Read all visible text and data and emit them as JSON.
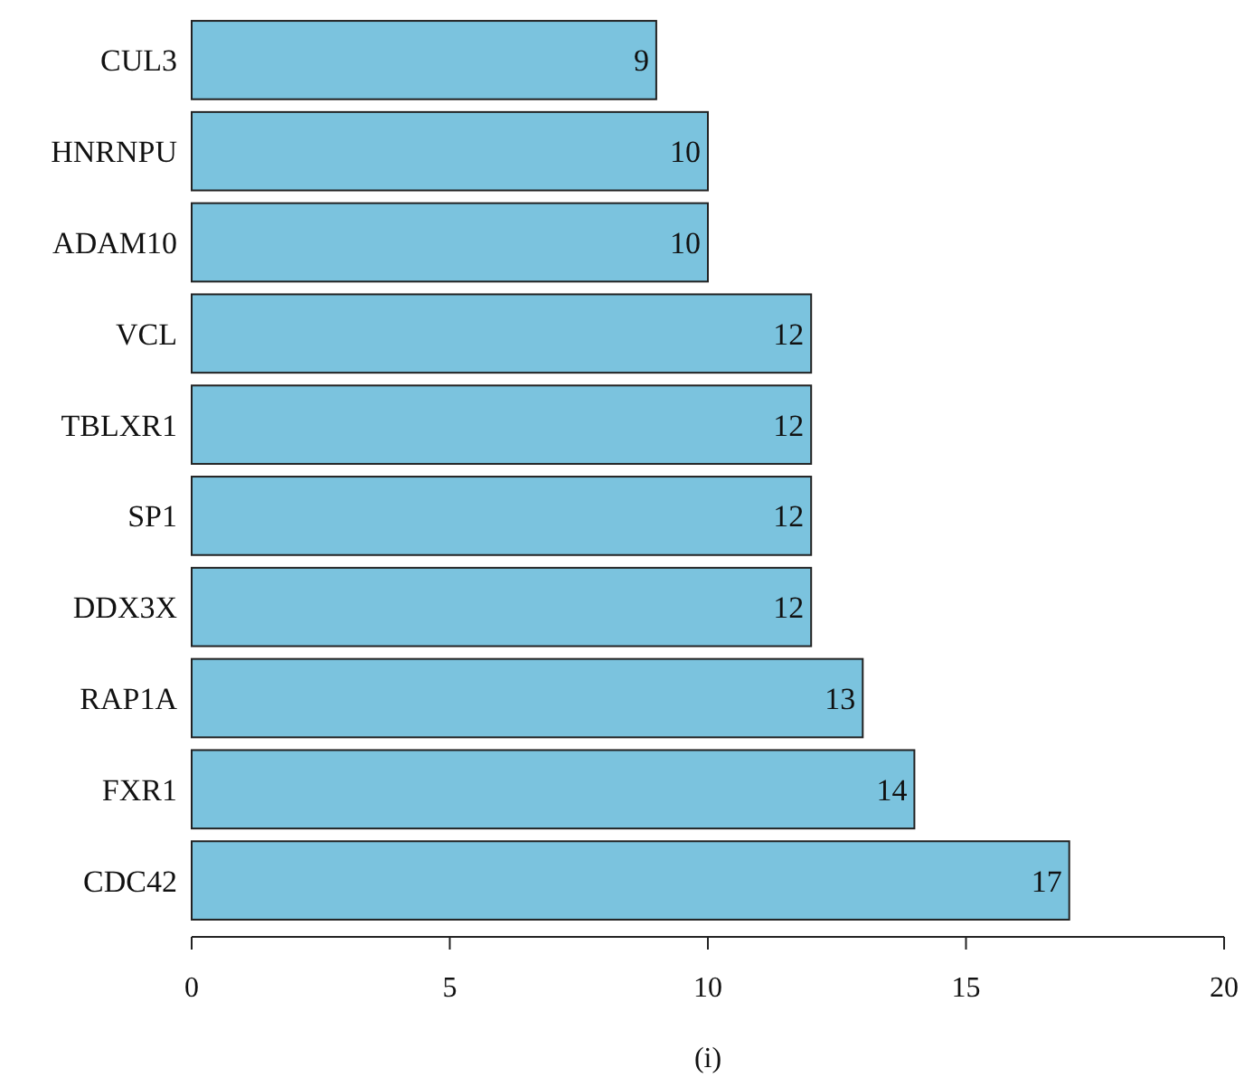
{
  "chart_data": {
    "type": "bar",
    "orientation": "horizontal",
    "categories": [
      "CUL3",
      "HNRNPU",
      "ADAM10",
      "VCL",
      "TBLXR1",
      "SP1",
      "DDX3X",
      "RAP1A",
      "FXR1",
      "CDC42"
    ],
    "values": [
      9,
      10,
      10,
      12,
      12,
      12,
      12,
      13,
      14,
      17
    ],
    "color": "#7bc3de",
    "xlim": [
      0,
      20
    ],
    "xticks": [
      0,
      5,
      10,
      15,
      20
    ],
    "xlabel": "(i)",
    "data_labels": true,
    "grid": false
  }
}
